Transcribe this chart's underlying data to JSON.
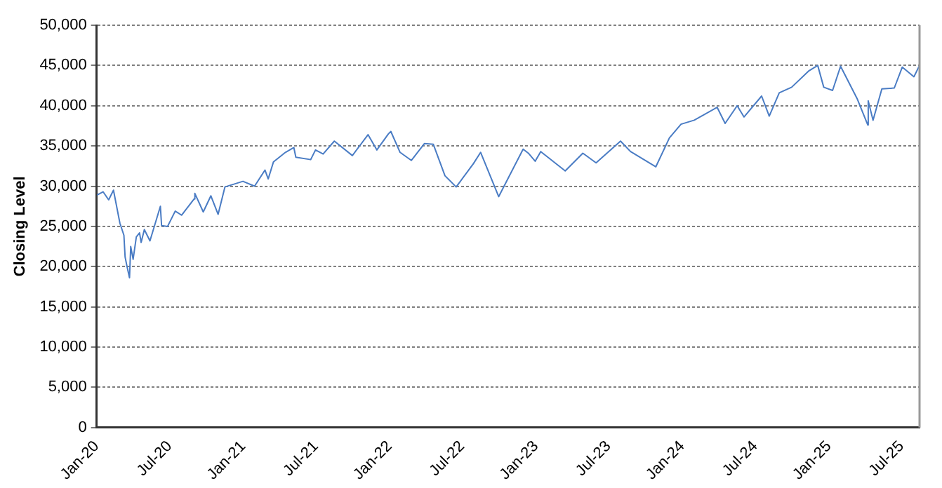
{
  "chart_data": {
    "type": "line",
    "ylabel": "Closing Level",
    "grid": "y",
    "line_style": "solid",
    "marker": "none",
    "xlim": [
      "2020-01-01",
      "2025-08-15"
    ],
    "xticks": [
      {
        "value": "2020-01-01",
        "label": "Jan-20"
      },
      {
        "value": "2020-07-01",
        "label": "Jul-20"
      },
      {
        "value": "2021-01-01",
        "label": "Jan-21"
      },
      {
        "value": "2021-07-01",
        "label": "Jul-21"
      },
      {
        "value": "2022-01-01",
        "label": "Jan-22"
      },
      {
        "value": "2022-07-01",
        "label": "Jul-22"
      },
      {
        "value": "2023-01-01",
        "label": "Jan-23"
      },
      {
        "value": "2023-07-01",
        "label": "Jul-23"
      },
      {
        "value": "2024-01-01",
        "label": "Jan-24"
      },
      {
        "value": "2024-07-01",
        "label": "Jul-24"
      },
      {
        "value": "2025-01-01",
        "label": "Jan-25"
      },
      {
        "value": "2025-07-01",
        "label": "Jul-25"
      }
    ],
    "ylim": [
      0,
      50000
    ],
    "yticks": [
      0,
      {
        "value": 5000,
        "label": "5,000"
      },
      {
        "value": 10000,
        "label": "10,000"
      },
      {
        "value": 15000,
        "label": "15,000"
      },
      {
        "value": 20000,
        "label": "20,000"
      },
      {
        "value": 25000,
        "label": "25,000"
      },
      {
        "value": 30000,
        "label": "30,000"
      },
      {
        "value": 35000,
        "label": "35,000"
      },
      {
        "value": 40000,
        "label": "40,000"
      },
      {
        "value": 45000,
        "label": "45,000"
      },
      {
        "value": 50000,
        "label": "50,000"
      }
    ],
    "x": [
      "2020-01-02",
      "2020-01-17",
      "2020-01-31",
      "2020-02-12",
      "2020-02-28",
      "2020-03-09",
      "2020-03-12",
      "2020-03-16",
      "2020-03-23",
      "2020-03-26",
      "2020-04-01",
      "2020-04-09",
      "2020-04-17",
      "2020-04-21",
      "2020-04-29",
      "2020-05-13",
      "2020-06-08",
      "2020-06-11",
      "2020-06-26",
      "2020-07-15",
      "2020-07-31",
      "2020-08-31",
      "2020-09-02",
      "2020-09-23",
      "2020-10-12",
      "2020-10-30",
      "2020-11-16",
      "2020-12-31",
      "2021-01-29",
      "2021-02-24",
      "2021-03-04",
      "2021-03-17",
      "2021-04-16",
      "2021-05-07",
      "2021-05-12",
      "2021-06-18",
      "2021-06-30",
      "2021-07-19",
      "2021-08-16",
      "2021-09-30",
      "2021-11-08",
      "2021-11-30",
      "2021-12-29",
      "2022-01-04",
      "2022-01-27",
      "2022-02-24",
      "2022-03-29",
      "2022-04-20",
      "2022-05-19",
      "2022-06-16",
      "2022-07-29",
      "2022-08-16",
      "2022-09-30",
      "2022-11-30",
      "2022-12-13",
      "2022-12-30",
      "2023-01-13",
      "2023-03-15",
      "2023-04-28",
      "2023-05-31",
      "2023-07-31",
      "2023-08-25",
      "2023-10-27",
      "2023-11-30",
      "2023-12-29",
      "2024-01-31",
      "2024-03-28",
      "2024-04-17",
      "2024-05-17",
      "2024-06-03",
      "2024-07-17",
      "2024-08-05",
      "2024-08-30",
      "2024-09-30",
      "2024-11-11",
      "2024-12-04",
      "2024-12-19",
      "2025-01-10",
      "2025-01-30",
      "2025-03-13",
      "2025-04-08",
      "2025-04-09",
      "2025-04-21",
      "2025-05-13",
      "2025-06-13",
      "2025-07-03",
      "2025-08-01",
      "2025-08-14"
    ],
    "series": [
      {
        "color": "#4a7cc4",
        "values": [
          28900,
          29300,
          28300,
          29500,
          25400,
          23900,
          21200,
          20200,
          18600,
          22500,
          20900,
          23700,
          24200,
          23000,
          24600,
          23200,
          27500,
          25100,
          25000,
          26900,
          26400,
          28400,
          29100,
          26800,
          28800,
          26500,
          29900,
          30600,
          30000,
          32000,
          30900,
          33000,
          34200,
          34800,
          33600,
          33300,
          34500,
          34000,
          35600,
          33800,
          36400,
          34500,
          36500,
          36800,
          34200,
          33200,
          35300,
          35200,
          31300,
          29900,
          32800,
          34200,
          28700,
          34600,
          34100,
          33100,
          34300,
          31900,
          34100,
          32900,
          35600,
          34300,
          32400,
          36000,
          37700,
          38200,
          39800,
          37800,
          40000,
          38600,
          41200,
          38700,
          41600,
          42300,
          44300,
          45000,
          42300,
          41900,
          44900,
          40800,
          37600,
          40600,
          38200,
          42100,
          42200,
          44800,
          43600,
          44900
        ]
      }
    ]
  }
}
